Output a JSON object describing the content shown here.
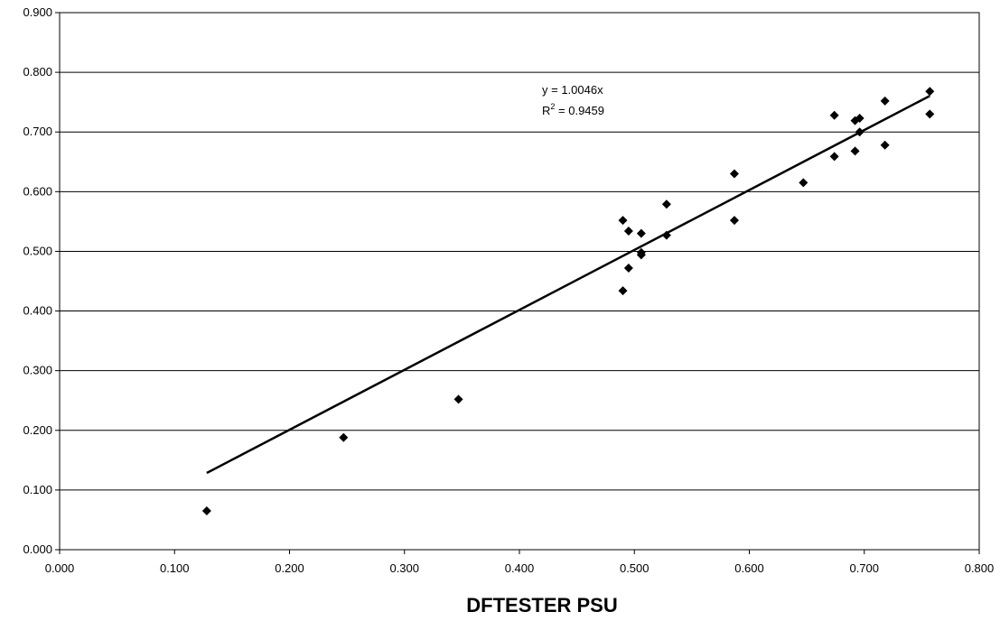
{
  "chart_data": {
    "type": "scatter",
    "xlabel": "DFTESTER PSU",
    "ylabel": "",
    "xlim": [
      0,
      0.8
    ],
    "ylim": [
      0,
      0.9
    ],
    "x_ticks": [
      "0.000",
      "0.100",
      "0.200",
      "0.300",
      "0.400",
      "0.500",
      "0.600",
      "0.700",
      "0.800"
    ],
    "y_ticks": [
      "0.000",
      "0.100",
      "0.200",
      "0.300",
      "0.400",
      "0.500",
      "0.600",
      "0.700",
      "0.800",
      "0.900"
    ],
    "grid": "horizontal",
    "points": [
      {
        "x": 0.128,
        "y": 0.065
      },
      {
        "x": 0.247,
        "y": 0.188
      },
      {
        "x": 0.347,
        "y": 0.252
      },
      {
        "x": 0.49,
        "y": 0.552
      },
      {
        "x": 0.49,
        "y": 0.434
      },
      {
        "x": 0.495,
        "y": 0.534
      },
      {
        "x": 0.495,
        "y": 0.472
      },
      {
        "x": 0.506,
        "y": 0.53
      },
      {
        "x": 0.506,
        "y": 0.498
      },
      {
        "x": 0.506,
        "y": 0.494
      },
      {
        "x": 0.528,
        "y": 0.579
      },
      {
        "x": 0.528,
        "y": 0.527
      },
      {
        "x": 0.587,
        "y": 0.63
      },
      {
        "x": 0.587,
        "y": 0.552
      },
      {
        "x": 0.647,
        "y": 0.615
      },
      {
        "x": 0.674,
        "y": 0.728
      },
      {
        "x": 0.674,
        "y": 0.659
      },
      {
        "x": 0.692,
        "y": 0.719
      },
      {
        "x": 0.692,
        "y": 0.668
      },
      {
        "x": 0.696,
        "y": 0.723
      },
      {
        "x": 0.696,
        "y": 0.7
      },
      {
        "x": 0.718,
        "y": 0.752
      },
      {
        "x": 0.718,
        "y": 0.678
      },
      {
        "x": 0.757,
        "y": 0.768
      },
      {
        "x": 0.757,
        "y": 0.73
      }
    ],
    "trendline": {
      "slope": 1.0046,
      "x_range": [
        0.128,
        0.757
      ],
      "equation_text": "y = 1.0046x",
      "r2_prefix": "R",
      "r2_sup": "2",
      "r2_suffix": " = 0.9459"
    },
    "colors": {
      "marker": "#000000",
      "grid": "#000000",
      "background": "#ffffff"
    }
  }
}
